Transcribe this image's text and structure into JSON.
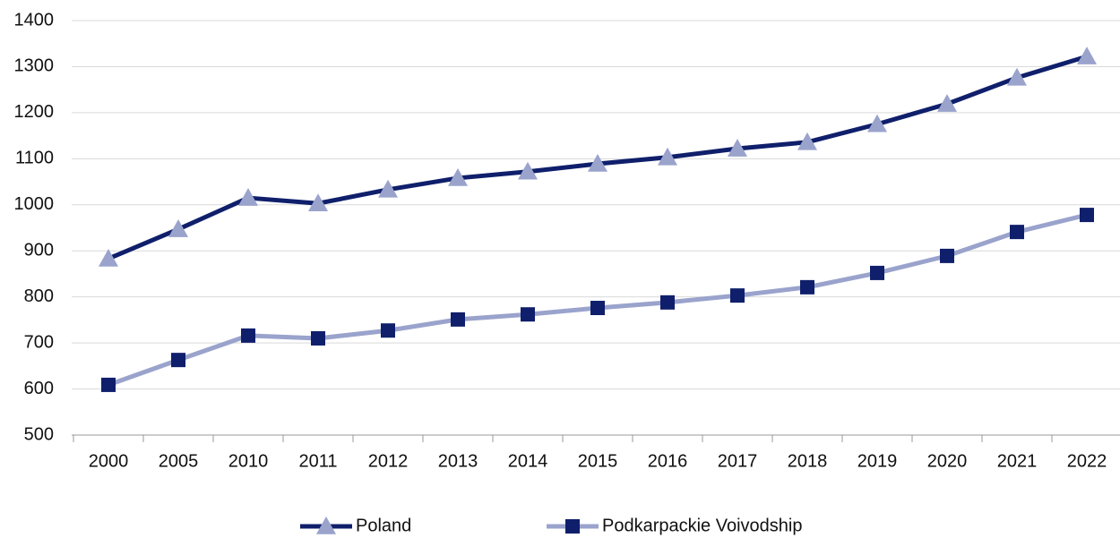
{
  "chart_data": {
    "type": "line",
    "categories": [
      "2000",
      "2005",
      "2010",
      "2011",
      "2012",
      "2013",
      "2014",
      "2015",
      "2016",
      "2017",
      "2018",
      "2019",
      "2020",
      "2021",
      "2022"
    ],
    "series": [
      {
        "name": "Poland",
        "color": "#0f1f6b",
        "marker": "triangle",
        "marker_color": "#9aa3cc",
        "values": [
          883,
          947,
          1015,
          1003,
          1033,
          1058,
          1072,
          1089,
          1103,
          1122,
          1136,
          1175,
          1219,
          1276,
          1322
        ]
      },
      {
        "name": "Podkarpackie Voivodship",
        "color": "#9aa3cc",
        "marker": "square",
        "marker_color": "#0f1f6b",
        "values": [
          609,
          663,
          716,
          710,
          727,
          751,
          762,
          776,
          788,
          803,
          821,
          852,
          889,
          941,
          978
        ]
      }
    ],
    "ylim": [
      500,
      1400
    ],
    "yticks": [
      500,
      600,
      700,
      800,
      900,
      1000,
      1100,
      1200,
      1300,
      1400
    ],
    "grid": true,
    "legend": "bottom"
  }
}
